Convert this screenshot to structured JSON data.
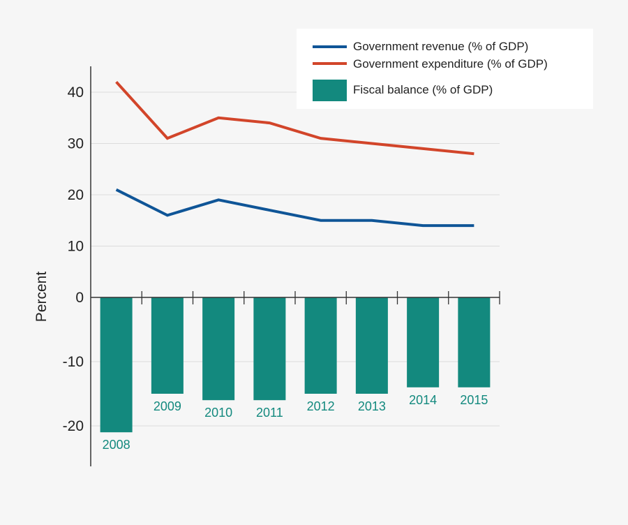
{
  "chart_data": {
    "type": "bar+line",
    "categories": [
      "2008",
      "2009",
      "2010",
      "2011",
      "2012",
      "2013",
      "2014",
      "2015"
    ],
    "series": [
      {
        "name": "Government revenue (% of GDP)",
        "type": "line",
        "color": "#0f5597",
        "values": [
          21,
          16,
          19,
          17,
          15,
          15,
          14,
          14
        ]
      },
      {
        "name": "Government expenditure (% of GDP)",
        "type": "line",
        "color": "#d2452a",
        "values": [
          42,
          31,
          35,
          34,
          31,
          30,
          29,
          28
        ]
      },
      {
        "name": "Fiscal balance (% of GDP)",
        "type": "bar",
        "color": "#13897e",
        "values": [
          -21,
          -15,
          -16,
          -16,
          -15,
          -15,
          -14,
          -14
        ]
      }
    ],
    "ylabel": "Percent",
    "yticks": [
      40,
      30,
      20,
      10,
      0,
      -10,
      -20
    ],
    "ytick_labels": [
      "40",
      "30",
      "20",
      "10",
      "0",
      "-10",
      "-20"
    ],
    "grid": true,
    "legend": "top-right"
  }
}
